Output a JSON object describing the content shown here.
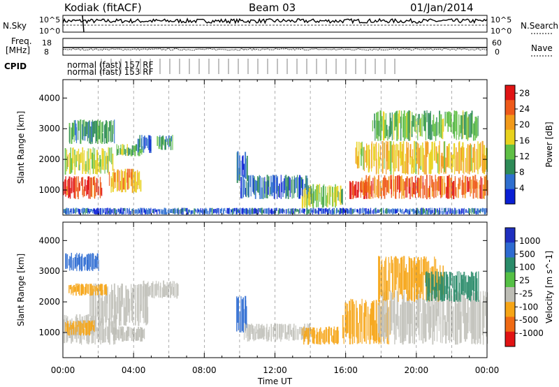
{
  "header": {
    "radar": "Kodiak (fitACF)",
    "beam": "Beam 03",
    "date": "01/Jan/2014"
  },
  "side_labels": {
    "nsky": "N.Sky",
    "nsky_ticks": [
      "10^5",
      "10^0"
    ],
    "nsearch": "N.Search",
    "nsearch_ticks": [
      "10^5",
      "10^0"
    ],
    "freq": "Freq.",
    "freq_unit": "[MHz]",
    "freq_ticks": [
      "18",
      "8"
    ],
    "nave": "Nave",
    "nave_ticks": [
      "60",
      "0"
    ],
    "cpid": "CPID",
    "cpid_rows": [
      "normal (fast) 153 RF",
      "normal (fast) 157 RF"
    ]
  },
  "colors": {
    "power": [
      "#0a1fd4",
      "#2f6fcf",
      "#2e8b57",
      "#5fbf45",
      "#e8d21d",
      "#f29a1a",
      "#ee5a1a",
      "#e01414"
    ],
    "velocity": [
      "#1f2fbf",
      "#2e6bd1",
      "#2a8c6a",
      "#55c045",
      "#bdbdb5",
      "#f6a516",
      "#ef6a14",
      "#e11313"
    ],
    "ground_scatter": "#c2c2bb"
  },
  "chart_data": [
    {
      "type": "heatmap",
      "title": "",
      "xlabel": "Time UT",
      "ylabel": "Slant Range [km]",
      "x_ticks": [
        "00:00",
        "04:00",
        "08:00",
        "12:00",
        "16:00",
        "20:00",
        "00:00"
      ],
      "xlim": [
        0,
        24
      ],
      "ylim": [
        180,
        4600
      ],
      "y_ticks": [
        1000,
        2000,
        3000,
        4000
      ],
      "colorbar": {
        "label": "Power [dB]",
        "ticks": [
          4,
          8,
          12,
          16,
          20,
          24,
          28
        ],
        "range": [
          0,
          30
        ]
      },
      "regions": [
        {
          "t": [
            0.0,
            2.2
          ],
          "r": [
            700,
            1450
          ],
          "value": 26
        },
        {
          "t": [
            0.1,
            2.8
          ],
          "r": [
            1500,
            2400
          ],
          "value": 15
        },
        {
          "t": [
            0.3,
            2.9
          ],
          "r": [
            2500,
            3300
          ],
          "value": 10
        },
        {
          "t": [
            2.6,
            4.4
          ],
          "r": [
            900,
            1700
          ],
          "value": 20
        },
        {
          "t": [
            3.0,
            4.5
          ],
          "r": [
            2100,
            2500
          ],
          "value": 12
        },
        {
          "t": [
            4.2,
            5.0
          ],
          "r": [
            2200,
            2800
          ],
          "value": 6
        },
        {
          "t": [
            5.3,
            6.2
          ],
          "r": [
            2300,
            2800
          ],
          "value": 10
        },
        {
          "t": [
            9.8,
            10.4
          ],
          "r": [
            1200,
            2300
          ],
          "value": 5
        },
        {
          "t": [
            10.0,
            14.0
          ],
          "r": [
            700,
            1500
          ],
          "value": 6
        },
        {
          "t": [
            13.5,
            15.8
          ],
          "r": [
            400,
            1200
          ],
          "value": 14
        },
        {
          "t": [
            16.2,
            17.4
          ],
          "r": [
            700,
            1300
          ],
          "value": 27
        },
        {
          "t": [
            16.8,
            24.0
          ],
          "r": [
            700,
            1500
          ],
          "value": 24
        },
        {
          "t": [
            16.5,
            24.0
          ],
          "r": [
            1500,
            2600
          ],
          "value": 18
        },
        {
          "t": [
            17.5,
            23.5
          ],
          "r": [
            2600,
            3600
          ],
          "value": 12
        },
        {
          "t": [
            0.0,
            24.0
          ],
          "r": [
            200,
            420
          ],
          "value": 5
        }
      ]
    },
    {
      "type": "heatmap",
      "title": "",
      "xlabel": "Time UT",
      "ylabel": "Slant Range [km]",
      "x_ticks": [
        "00:00",
        "04:00",
        "08:00",
        "12:00",
        "16:00",
        "20:00",
        "00:00"
      ],
      "xlim": [
        0,
        24
      ],
      "ylim": [
        180,
        4600
      ],
      "y_ticks": [
        1000,
        2000,
        3000,
        4000
      ],
      "colorbar": {
        "label": "Velocity [m s^-1]",
        "ticks": [
          1000,
          500,
          100,
          25,
          -25,
          -100,
          -500,
          -1000
        ]
      },
      "regions": [
        {
          "t": [
            0.0,
            3.0
          ],
          "r": [
            600,
            1600
          ],
          "value": "ground"
        },
        {
          "t": [
            1.5,
            4.8
          ],
          "r": [
            1200,
            2600
          ],
          "value": "ground"
        },
        {
          "t": [
            4.5,
            6.5
          ],
          "r": [
            2100,
            2700
          ],
          "value": "ground"
        },
        {
          "t": [
            0.1,
            1.8
          ],
          "r": [
            900,
            1400
          ],
          "value": -150
        },
        {
          "t": [
            0.3,
            2.5
          ],
          "r": [
            2200,
            2600
          ],
          "value": -150
        },
        {
          "t": [
            0.1,
            2.0
          ],
          "r": [
            3000,
            3600
          ],
          "value": 150
        },
        {
          "t": [
            2.8,
            4.6
          ],
          "r": [
            700,
            1200
          ],
          "value": -100
        },
        {
          "t": [
            9.8,
            10.4
          ],
          "r": [
            1000,
            2200
          ],
          "value": 300
        },
        {
          "t": [
            10.2,
            14.0
          ],
          "r": [
            700,
            1300
          ],
          "value": "ground"
        },
        {
          "t": [
            13.5,
            15.6
          ],
          "r": [
            600,
            1200
          ],
          "value": -150
        },
        {
          "t": [
            15.8,
            18.5
          ],
          "r": [
            600,
            2100
          ],
          "value": -200
        },
        {
          "t": [
            17.8,
            24.0
          ],
          "r": [
            600,
            2400
          ],
          "value": "ground"
        },
        {
          "t": [
            17.8,
            21.5
          ],
          "r": [
            2000,
            3500
          ],
          "value": -300
        },
        {
          "t": [
            20.5,
            23.5
          ],
          "r": [
            2000,
            3000
          ],
          "value": 80
        }
      ]
    }
  ]
}
